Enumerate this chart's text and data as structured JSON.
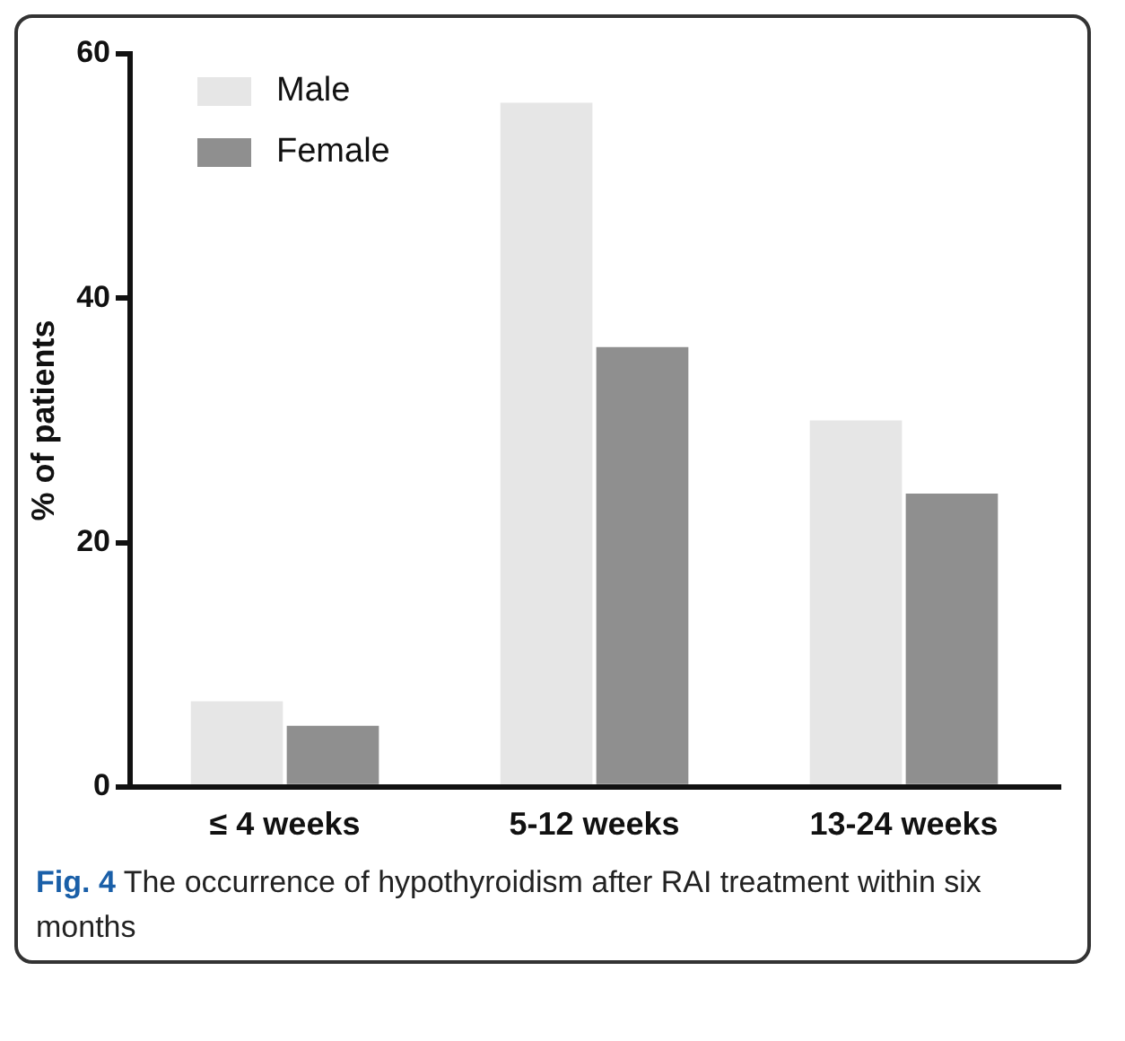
{
  "chart_data": {
    "type": "bar",
    "ylabel": "% of patients",
    "categories": [
      "≤ 4 weeks",
      "5-12 weeks",
      "13-24 weeks"
    ],
    "series": [
      {
        "name": "Male",
        "color": "#e6e6e6",
        "values": [
          7,
          56,
          30
        ]
      },
      {
        "name": "Female",
        "color": "#8f8f8f",
        "values": [
          5,
          36,
          24
        ]
      }
    ],
    "ylim": [
      0,
      60
    ],
    "yticks": [
      0,
      20,
      40,
      60
    ],
    "grid": false,
    "legend": "top left",
    "annotations": [
      "Fig. 4 The occurrence of hypothyroidism after RAI treatment within six months"
    ]
  }
}
